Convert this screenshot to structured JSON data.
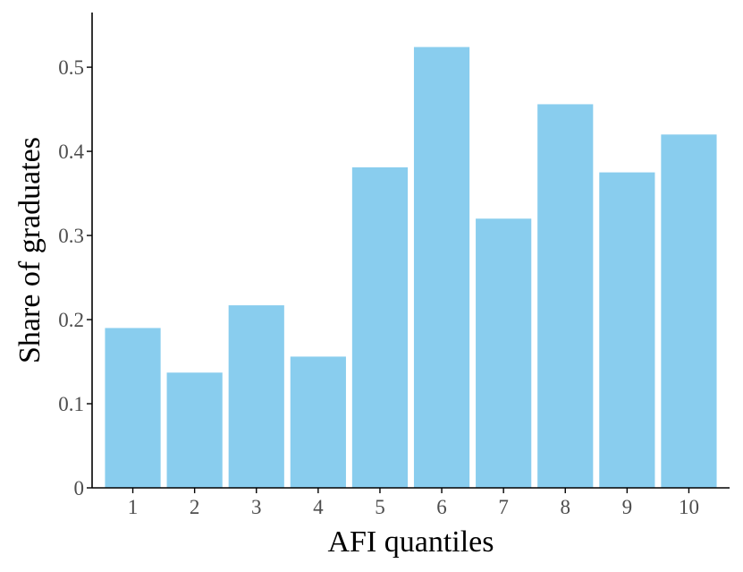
{
  "chart_data": {
    "type": "bar",
    "title": "",
    "xlabel": "AFI quantiles",
    "ylabel": "Share of graduates",
    "categories": [
      "1",
      "2",
      "3",
      "4",
      "5",
      "6",
      "7",
      "8",
      "9",
      "10"
    ],
    "values": [
      0.19,
      0.137,
      0.217,
      0.156,
      0.381,
      0.524,
      0.32,
      0.456,
      0.375,
      0.42
    ],
    "ylim": [
      0,
      0.565
    ],
    "yticks": [
      0,
      0.1,
      0.2,
      0.3,
      0.4,
      0.5
    ],
    "ytick_labels": [
      "0",
      "0.1",
      "0.2",
      "0.3",
      "0.4",
      "0.5"
    ],
    "bar_color": "#89CDEE",
    "grid": false,
    "legend": "none"
  }
}
